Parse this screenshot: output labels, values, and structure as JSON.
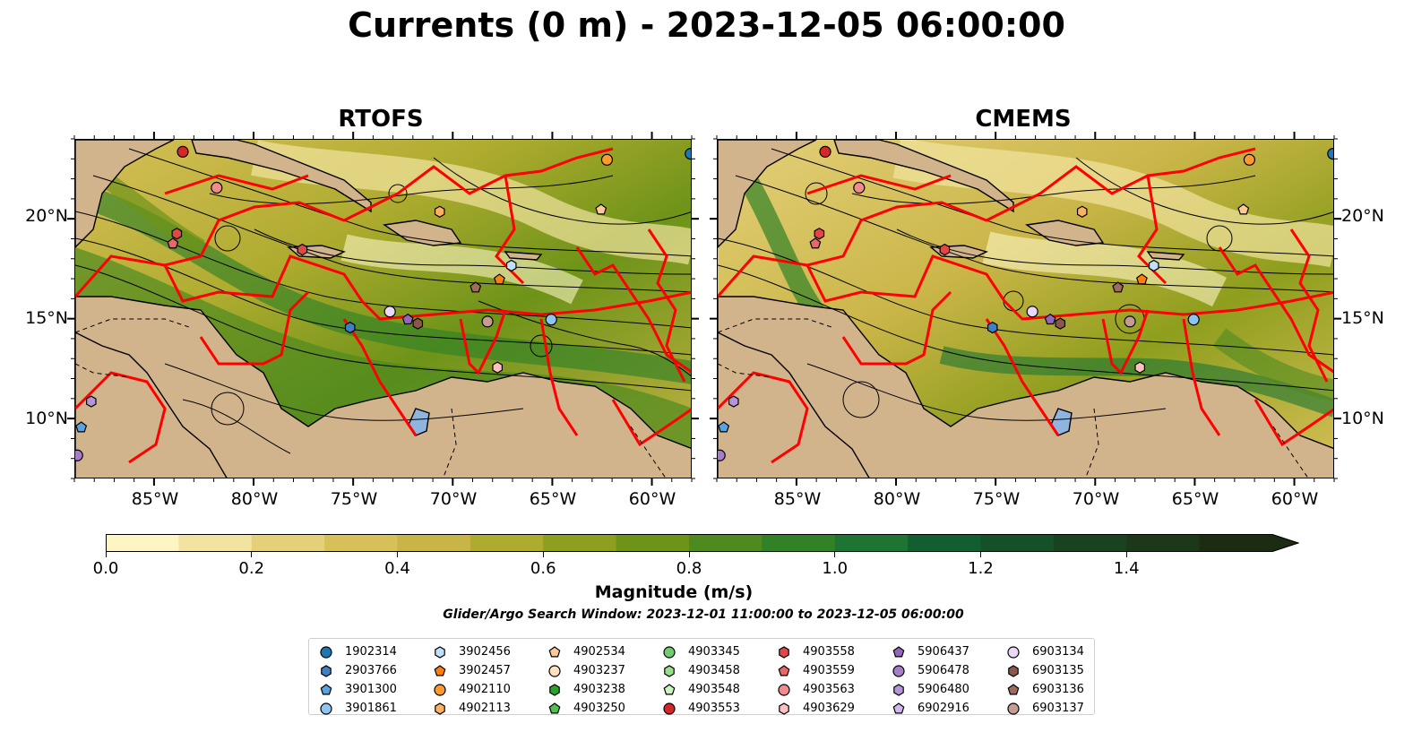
{
  "title": "Currents (0 m) - 2023-12-05 06:00:00",
  "panels": [
    {
      "title": "RTOFS"
    },
    {
      "title": "CMEMS"
    }
  ],
  "map_extent": {
    "lon": [
      -89,
      -58
    ],
    "lat": [
      7,
      24
    ]
  },
  "lat_ticks": [
    "20°N",
    "15°N",
    "10°N"
  ],
  "lon_ticks": [
    "85°W",
    "80°W",
    "75°W",
    "70°W",
    "65°W",
    "60°W"
  ],
  "colorbar": {
    "label": "Magnitude (m/s)",
    "ticks": [
      "0.0",
      "0.2",
      "0.4",
      "0.6",
      "0.8",
      "1.0",
      "1.2",
      "1.4"
    ],
    "range": [
      0,
      1.6
    ],
    "extend": "max",
    "colors": [
      "#fdf5c4",
      "#f2e4a0",
      "#e5d07a",
      "#d8c059",
      "#c9b547",
      "#aeab2f",
      "#8e9e1d",
      "#6d9318",
      "#4f8a1f",
      "#318126",
      "#1d7433",
      "#115f30",
      "#145128",
      "#1a4221",
      "#1d3719",
      "#1c2c13"
    ]
  },
  "search_window": "Glider/Argo Search Window: 2023-12-01 11:00:00 to 2023-12-05 06:00:00",
  "land_color": "#d2b48c",
  "track_color": "#ff0000",
  "legend": [
    {
      "id": "1902314",
      "marker": "circle",
      "color": "#1f77b4"
    },
    {
      "id": "2903766",
      "marker": "hexagon",
      "color": "#3f7fc4"
    },
    {
      "id": "3901300",
      "marker": "pentagon",
      "color": "#5aa2e0"
    },
    {
      "id": "3901861",
      "marker": "circle",
      "color": "#8dc4f0"
    },
    {
      "id": "3902456",
      "marker": "hexagon",
      "color": "#bfe0f8"
    },
    {
      "id": "3902457",
      "marker": "pentagon",
      "color": "#ff7f0e"
    },
    {
      "id": "4902110",
      "marker": "circle",
      "color": "#ff9a30"
    },
    {
      "id": "4902113",
      "marker": "hexagon",
      "color": "#ffb060"
    },
    {
      "id": "4902534",
      "marker": "pentagon",
      "color": "#ffc895"
    },
    {
      "id": "4903237",
      "marker": "circle",
      "color": "#ffe0c0"
    },
    {
      "id": "4903238",
      "marker": "hexagon",
      "color": "#2ca02c"
    },
    {
      "id": "4903250",
      "marker": "pentagon",
      "color": "#50c050"
    },
    {
      "id": "4903345",
      "marker": "circle",
      "color": "#70cc70"
    },
    {
      "id": "4903458",
      "marker": "hexagon",
      "color": "#98df8a"
    },
    {
      "id": "4903548",
      "marker": "pentagon",
      "color": "#c8f5c0"
    },
    {
      "id": "4903553",
      "marker": "circle",
      "color": "#d62728"
    },
    {
      "id": "4903558",
      "marker": "hexagon",
      "color": "#e04848"
    },
    {
      "id": "4903559",
      "marker": "pentagon",
      "color": "#e86868"
    },
    {
      "id": "4903563",
      "marker": "circle",
      "color": "#f08c8c"
    },
    {
      "id": "4903629",
      "marker": "hexagon",
      "color": "#ffc0c0"
    },
    {
      "id": "5906437",
      "marker": "pentagon",
      "color": "#9467bd"
    },
    {
      "id": "5906478",
      "marker": "circle",
      "color": "#a77cc8"
    },
    {
      "id": "5906480",
      "marker": "hexagon",
      "color": "#b595d8"
    },
    {
      "id": "6902916",
      "marker": "pentagon",
      "color": "#d0b8f0"
    },
    {
      "id": "6903134",
      "marker": "circle",
      "color": "#ead8fa"
    },
    {
      "id": "6903135",
      "marker": "hexagon",
      "color": "#8c564b"
    },
    {
      "id": "6903136",
      "marker": "pentagon",
      "color": "#a06a5e"
    },
    {
      "id": "6903137",
      "marker": "circle",
      "color": "#c49c94"
    }
  ],
  "markers": [
    {
      "lon": -83.6,
      "lat": 23.4,
      "color": "#d62728",
      "marker": "circle"
    },
    {
      "lon": -81.9,
      "lat": 21.6,
      "color": "#f08c8c",
      "marker": "circle"
    },
    {
      "lon": -83.9,
      "lat": 19.3,
      "color": "#e04848",
      "marker": "hexagon"
    },
    {
      "lon": -84.1,
      "lat": 18.8,
      "color": "#e86868",
      "marker": "pentagon"
    },
    {
      "lon": -77.6,
      "lat": 18.5,
      "color": "#e04848",
      "marker": "hexagon"
    },
    {
      "lon": -70.7,
      "lat": 20.4,
      "color": "#ffb060",
      "marker": "hexagon"
    },
    {
      "lon": -62.3,
      "lat": 23.0,
      "color": "#ff9a30",
      "marker": "circle"
    },
    {
      "lon": -62.6,
      "lat": 20.5,
      "color": "#ffc895",
      "marker": "pentagon"
    },
    {
      "lon": -58.1,
      "lat": 23.3,
      "color": "#1f77b4",
      "marker": "circle"
    },
    {
      "lon": -67.1,
      "lat": 17.7,
      "color": "#bfe0f8",
      "marker": "hexagon"
    },
    {
      "lon": -67.7,
      "lat": 17.0,
      "color": "#ff7f0e",
      "marker": "pentagon"
    },
    {
      "lon": -68.9,
      "lat": 16.6,
      "color": "#a06a5e",
      "marker": "pentagon"
    },
    {
      "lon": -68.3,
      "lat": 14.9,
      "color": "#c49c94",
      "marker": "circle"
    },
    {
      "lon": -65.1,
      "lat": 15.0,
      "color": "#8dc4f0",
      "marker": "circle"
    },
    {
      "lon": -73.2,
      "lat": 15.4,
      "color": "#ead8fa",
      "marker": "circle"
    },
    {
      "lon": -72.3,
      "lat": 15.0,
      "color": "#9467bd",
      "marker": "pentagon"
    },
    {
      "lon": -71.8,
      "lat": 14.8,
      "color": "#8c564b",
      "marker": "hexagon"
    },
    {
      "lon": -75.2,
      "lat": 14.6,
      "color": "#3f7fc4",
      "marker": "hexagon"
    },
    {
      "lon": -67.8,
      "lat": 12.6,
      "color": "#ffc0c0",
      "marker": "hexagon"
    },
    {
      "lon": -88.2,
      "lat": 10.9,
      "color": "#b595d8",
      "marker": "hexagon"
    },
    {
      "lon": -88.7,
      "lat": 9.6,
      "color": "#5aa2e0",
      "marker": "pentagon"
    },
    {
      "lon": -88.9,
      "lat": 8.2,
      "color": "#a77cc8",
      "marker": "circle"
    }
  ]
}
